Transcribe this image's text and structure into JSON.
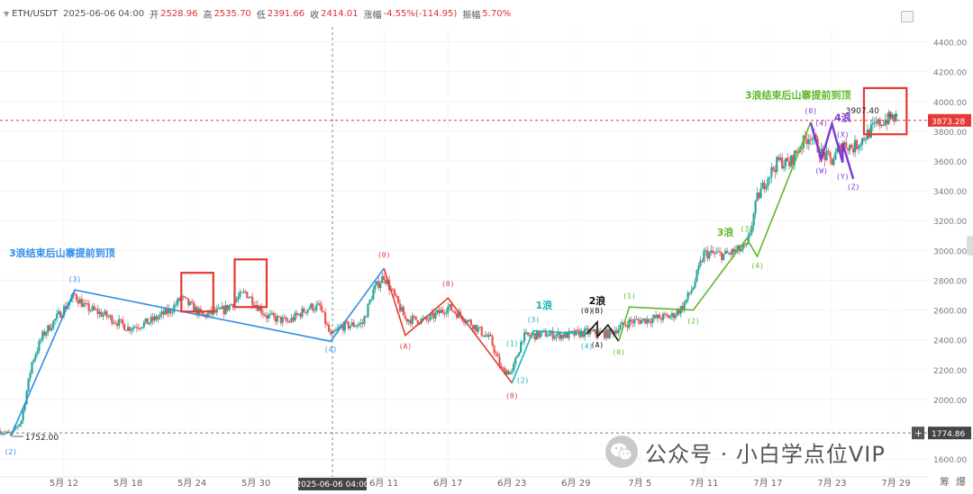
{
  "header": {
    "symbol": "ETH/USDT",
    "date": "2025-06-06 04:00",
    "open_label": "开",
    "open": "2528.96",
    "high_label": "高",
    "high": "2535.70",
    "low_label": "低",
    "low": "2391.66",
    "close_label": "收",
    "close": "2414.01",
    "change_label": "涨幅",
    "change": "-4.55%(-114.95)",
    "amplitude_label": "振幅",
    "amplitude": "5.70%"
  },
  "watermark": {
    "text": "公众号 · 小白学点位VIP"
  },
  "bottom_right": [
    "筹",
    "爆"
  ],
  "colors": {
    "up": "#26a69a",
    "down": "#ef5350",
    "blue": "#2f8ee8",
    "red": "#e53935",
    "green": "#5fb82b",
    "purple": "#7a3ad6",
    "black": "#111111"
  },
  "chart_data": {
    "type": "candlestick",
    "pair": "ETH/USDT",
    "ylim": [
      1480,
      4500
    ],
    "y_ticks": [
      1600,
      1800,
      2000,
      2200,
      2400,
      2600,
      2800,
      3000,
      3200,
      3400,
      3600,
      3800,
      4000,
      4200,
      4400
    ],
    "x_range": [
      "2025-05-06",
      "2025-08-01"
    ],
    "x_ticks": [
      {
        "date": "2025-05-12",
        "label": "5月 12"
      },
      {
        "date": "2025-05-18",
        "label": "5月 18"
      },
      {
        "date": "2025-05-24",
        "label": "5月 24"
      },
      {
        "date": "2025-05-30",
        "label": "5月 30"
      },
      {
        "date": "2025-06-11",
        "label": "6月 11"
      },
      {
        "date": "2025-06-17",
        "label": "6月 17"
      },
      {
        "date": "2025-06-23",
        "label": "6月 23"
      },
      {
        "date": "2025-06-29",
        "label": "6月 29"
      },
      {
        "date": "2025-07-05",
        "label": "7月 5"
      },
      {
        "date": "2025-07-11",
        "label": "7月 11"
      },
      {
        "date": "2025-07-17",
        "label": "7月 17"
      },
      {
        "date": "2025-07-23",
        "label": "7月 23"
      },
      {
        "date": "2025-07-29",
        "label": "7月 29"
      }
    ],
    "crosshair": {
      "date": "2025-06-06 04:00",
      "label": "2025-06-06 04:00"
    },
    "price_lines": [
      {
        "value": 3873.28,
        "label": "3873.28",
        "style": "current"
      },
      {
        "value": 1774.86,
        "label": "1774.86",
        "style": "cursor"
      }
    ],
    "extremes": [
      {
        "date": "2025-05-07",
        "value": 1752.0,
        "label": "1752.00"
      },
      {
        "date": "2025-07-28",
        "value": 3907.4,
        "label": "3907.40"
      }
    ],
    "price_path": [
      {
        "date": "2025-05-06",
        "price": 1790
      },
      {
        "date": "2025-05-07",
        "price": 1760
      },
      {
        "date": "2025-05-08",
        "price": 1860
      },
      {
        "date": "2025-05-09",
        "price": 2250
      },
      {
        "date": "2025-05-10",
        "price": 2430
      },
      {
        "date": "2025-05-11",
        "price": 2520
      },
      {
        "date": "2025-05-13",
        "price": 2700
      },
      {
        "date": "2025-05-14",
        "price": 2620
      },
      {
        "date": "2025-05-16",
        "price": 2560
      },
      {
        "date": "2025-05-18",
        "price": 2480
      },
      {
        "date": "2025-05-20",
        "price": 2520
      },
      {
        "date": "2025-05-22",
        "price": 2600
      },
      {
        "date": "2025-05-23",
        "price": 2680
      },
      {
        "date": "2025-05-25",
        "price": 2560
      },
      {
        "date": "2025-05-27",
        "price": 2600
      },
      {
        "date": "2025-05-29",
        "price": 2720
      },
      {
        "date": "2025-05-31",
        "price": 2560
      },
      {
        "date": "2025-06-02",
        "price": 2520
      },
      {
        "date": "2025-06-04",
        "price": 2620
      },
      {
        "date": "2025-06-05",
        "price": 2620
      },
      {
        "date": "2025-06-06",
        "price": 2420
      },
      {
        "date": "2025-06-07",
        "price": 2490
      },
      {
        "date": "2025-06-09",
        "price": 2510
      },
      {
        "date": "2025-06-10",
        "price": 2730
      },
      {
        "date": "2025-06-11",
        "price": 2830
      },
      {
        "date": "2025-06-13",
        "price": 2540
      },
      {
        "date": "2025-06-15",
        "price": 2530
      },
      {
        "date": "2025-06-17",
        "price": 2620
      },
      {
        "date": "2025-06-19",
        "price": 2520
      },
      {
        "date": "2025-06-21",
        "price": 2400
      },
      {
        "date": "2025-06-22",
        "price": 2200
      },
      {
        "date": "2025-06-23",
        "price": 2180
      },
      {
        "date": "2025-06-24",
        "price": 2420
      },
      {
        "date": "2025-06-26",
        "price": 2440
      },
      {
        "date": "2025-06-28",
        "price": 2430
      },
      {
        "date": "2025-06-30",
        "price": 2450
      },
      {
        "date": "2025-07-02",
        "price": 2440
      },
      {
        "date": "2025-07-04",
        "price": 2520
      },
      {
        "date": "2025-07-06",
        "price": 2540
      },
      {
        "date": "2025-07-08",
        "price": 2560
      },
      {
        "date": "2025-07-09",
        "price": 2620
      },
      {
        "date": "2025-07-10",
        "price": 2760
      },
      {
        "date": "2025-07-11",
        "price": 2980
      },
      {
        "date": "2025-07-13",
        "price": 2970
      },
      {
        "date": "2025-07-15",
        "price": 3020
      },
      {
        "date": "2025-07-16",
        "price": 3350
      },
      {
        "date": "2025-07-17",
        "price": 3500
      },
      {
        "date": "2025-07-18",
        "price": 3600
      },
      {
        "date": "2025-07-19",
        "price": 3580
      },
      {
        "date": "2025-07-20",
        "price": 3700
      },
      {
        "date": "2025-07-21",
        "price": 3780
      },
      {
        "date": "2025-07-22",
        "price": 3650
      },
      {
        "date": "2025-07-23",
        "price": 3600
      },
      {
        "date": "2025-07-24",
        "price": 3720
      },
      {
        "date": "2025-07-25",
        "price": 3690
      },
      {
        "date": "2025-07-26",
        "price": 3760
      },
      {
        "date": "2025-07-27",
        "price": 3830
      },
      {
        "date": "2025-07-28",
        "price": 3880
      },
      {
        "date": "2025-07-29",
        "price": 3890
      }
    ],
    "wave_lines": [
      {
        "color": "blue",
        "points": [
          {
            "date": "2025-05-07",
            "price": 1752
          },
          {
            "date": "2025-05-13",
            "price": 2735
          },
          {
            "date": "2025-06-06",
            "price": 2390
          },
          {
            "date": "2025-06-11",
            "price": 2880
          }
        ]
      },
      {
        "color": "red",
        "points": [
          {
            "date": "2025-06-11",
            "price": 2880
          },
          {
            "date": "2025-06-13",
            "price": 2430
          },
          {
            "date": "2025-06-17",
            "price": 2680
          },
          {
            "date": "2025-06-23",
            "price": 2110
          }
        ]
      },
      {
        "color": "teal",
        "points": [
          {
            "date": "2025-06-23",
            "price": 2110
          },
          {
            "date": "2025-06-25",
            "price": 2460
          },
          {
            "date": "2025-06-30",
            "price": 2440
          }
        ]
      },
      {
        "color": "black",
        "points": [
          {
            "date": "2025-06-30",
            "price": 2440
          },
          {
            "date": "2025-07-01",
            "price": 2520
          },
          {
            "date": "2025-07-01",
            "price": 2420
          },
          {
            "date": "2025-07-02",
            "price": 2500
          },
          {
            "date": "2025-07-03",
            "price": 2390
          }
        ]
      },
      {
        "color": "green",
        "points": [
          {
            "date": "2025-07-03",
            "price": 2390
          },
          {
            "date": "2025-07-04",
            "price": 2620
          },
          {
            "date": "2025-07-10",
            "price": 2600
          },
          {
            "date": "2025-07-15",
            "price": 3080
          },
          {
            "date": "2025-07-16",
            "price": 2960
          },
          {
            "date": "2025-07-21",
            "price": 3860
          }
        ]
      },
      {
        "color": "purple",
        "points": [
          {
            "date": "2025-07-21",
            "price": 3860
          },
          {
            "date": "2025-07-22",
            "price": 3610
          },
          {
            "date": "2025-07-23",
            "price": 3850
          },
          {
            "date": "2025-07-24",
            "price": 3590
          },
          {
            "date": "2025-07-24",
            "price": 3720
          },
          {
            "date": "2025-07-25",
            "price": 3480
          }
        ]
      }
    ],
    "wave_labels": [
      {
        "text": "(2)",
        "date": "2025-05-07",
        "price": 1630,
        "color": "blue"
      },
      {
        "text": "(3)",
        "date": "2025-05-13",
        "price": 2790,
        "color": "blue"
      },
      {
        "text": "(4)",
        "date": "2025-06-06",
        "price": 2320,
        "color": "blue"
      },
      {
        "text": "(0)",
        "date": "2025-06-11",
        "price": 2955,
        "color": "red"
      },
      {
        "text": "(A)",
        "date": "2025-06-13",
        "price": 2340,
        "color": "red"
      },
      {
        "text": "(0)",
        "date": "2025-06-17",
        "price": 2760,
        "color": "red"
      },
      {
        "text": "(0)",
        "date": "2025-06-23",
        "price": 2010,
        "color": "red"
      },
      {
        "text": "(1)",
        "date": "2025-06-23",
        "price": 2360,
        "color": "teal"
      },
      {
        "text": "(2)",
        "date": "2025-06-24",
        "price": 2110,
        "color": "teal"
      },
      {
        "text": "(3)",
        "date": "2025-06-25",
        "price": 2520,
        "color": "teal"
      },
      {
        "text": "(4)",
        "date": "2025-06-30",
        "price": 2340,
        "color": "teal"
      },
      {
        "text": "(B)",
        "date": "2025-07-01",
        "price": 2580,
        "color": "black"
      },
      {
        "text": "(0)",
        "date": "2025-06-30",
        "price": 2580,
        "color": "black"
      },
      {
        "text": "(A)",
        "date": "2025-07-01",
        "price": 2350,
        "color": "black"
      },
      {
        "text": "(0)",
        "date": "2025-07-03",
        "price": 2300,
        "color": "green"
      },
      {
        "text": "(1)",
        "date": "2025-07-04",
        "price": 2680,
        "color": "green"
      },
      {
        "text": "(2)",
        "date": "2025-07-10",
        "price": 2510,
        "color": "green"
      },
      {
        "text": "(3)",
        "date": "2025-07-15",
        "price": 3130,
        "color": "green"
      },
      {
        "text": "(4)",
        "date": "2025-07-16",
        "price": 2880,
        "color": "green"
      },
      {
        "text": "(0)",
        "date": "2025-07-21",
        "price": 3920,
        "color": "purple"
      },
      {
        "text": "(4)",
        "date": "2025-07-22",
        "price": 3840,
        "color": "purple"
      },
      {
        "text": "(W)",
        "date": "2025-07-22",
        "price": 3520,
        "color": "purple"
      },
      {
        "text": "(X)",
        "date": "2025-07-24",
        "price": 3760,
        "color": "purple"
      },
      {
        "text": "(Y)",
        "date": "2025-07-24",
        "price": 3480,
        "color": "purple"
      },
      {
        "text": "(Z)",
        "date": "2025-07-25",
        "price": 3410,
        "color": "purple"
      }
    ],
    "wave_titles": [
      {
        "text": "1浪",
        "date": "2025-06-26",
        "price": 2610,
        "color": "teal"
      },
      {
        "text": "2浪",
        "date": "2025-07-01",
        "price": 2640,
        "color": "black"
      },
      {
        "text": "3浪",
        "date": "2025-07-13",
        "price": 3100,
        "color": "green"
      },
      {
        "text": "4浪",
        "date": "2025-07-24",
        "price": 3870,
        "color": "purple"
      }
    ],
    "annotations": [
      {
        "text": "3浪结束后山寨提前到顶",
        "date": "2025-05-06",
        "price": 2960,
        "color": "blue"
      },
      {
        "text": "3浪结束后山寨提前到顶",
        "date": "2025-07-14",
        "price": 4020,
        "color": "green"
      }
    ],
    "highlight_boxes": [
      {
        "x_from": "2025-05-23",
        "x_to": "2025-05-26",
        "y_from": 2590,
        "y_to": 2850
      },
      {
        "x_from": "2025-05-28",
        "x_to": "2025-05-31",
        "y_from": 2620,
        "y_to": 2940
      },
      {
        "x_from": "2025-07-26",
        "x_to": "2025-07-30",
        "y_from": 3780,
        "y_to": 4090
      }
    ]
  }
}
